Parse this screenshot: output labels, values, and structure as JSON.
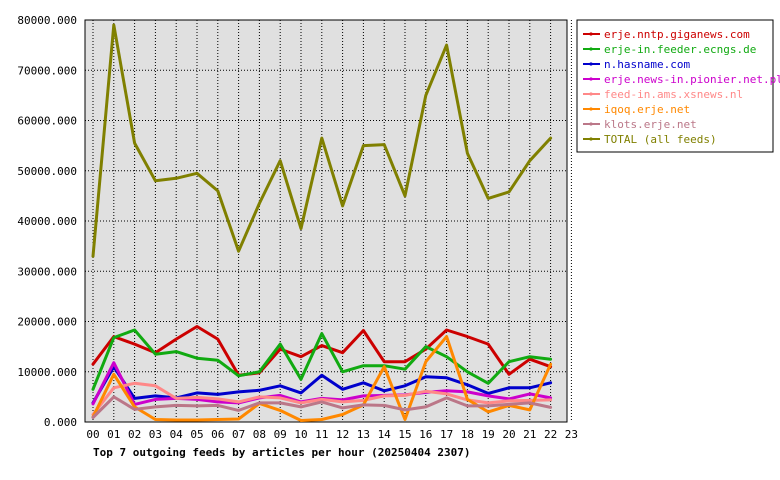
{
  "chart_data": {
    "type": "line",
    "title": "Top 7 outgoing feeds by articles per hour (20250404 2307)",
    "xlabel": "",
    "ylabel": "",
    "categories": [
      "00",
      "01",
      "02",
      "03",
      "04",
      "05",
      "06",
      "07",
      "08",
      "09",
      "10",
      "11",
      "12",
      "13",
      "14",
      "15",
      "16",
      "17",
      "18",
      "19",
      "20",
      "21",
      "22",
      "23"
    ],
    "y_ticks": [
      "0.000",
      "10000.000",
      "20000.000",
      "30000.000",
      "40000.000",
      "50000.000",
      "60000.000",
      "70000.000",
      "80000.000"
    ],
    "ylim": [
      0,
      80000
    ],
    "grid": true,
    "legend_position": "right",
    "series": [
      {
        "name": "erje.nntp.giganews.com",
        "color": "#cc0000",
        "values": [
          11500,
          17000,
          15500,
          13800,
          16500,
          19000,
          16500,
          9300,
          9800,
          14500,
          13000,
          15200,
          13800,
          18200,
          12000,
          12000,
          14500,
          18300,
          17000,
          15500,
          9500,
          12500,
          11000,
          null
        ]
      },
      {
        "name": "erje-in.feeder.ecngs.de",
        "color": "#11aa11",
        "values": [
          6500,
          16800,
          18300,
          13500,
          14000,
          12700,
          12300,
          9200,
          10000,
          15500,
          8500,
          17600,
          10000,
          11200,
          11200,
          10500,
          15000,
          13000,
          10000,
          7700,
          12000,
          13000,
          12500,
          null
        ]
      },
      {
        "name": "n.hasname.com",
        "color": "#0000cc",
        "values": [
          3800,
          11000,
          4700,
          5200,
          4800,
          5800,
          5500,
          6000,
          6300,
          7200,
          5800,
          9300,
          6500,
          7800,
          6200,
          7200,
          9000,
          8800,
          7400,
          5700,
          6800,
          6800,
          7800,
          null
        ]
      },
      {
        "name": "erje.news-in.pionier.net.pl",
        "color": "#cc00cc",
        "values": [
          3600,
          11800,
          3500,
          4500,
          4700,
          4500,
          4000,
          3800,
          4800,
          5300,
          4000,
          4700,
          4400,
          5200,
          5300,
          5400,
          5900,
          6200,
          6000,
          5200,
          4600,
          5600,
          4800,
          null
        ]
      },
      {
        "name": "feed-in.ams.xsnews.nl",
        "color": "#ff8888",
        "values": [
          1500,
          6800,
          7700,
          7200,
          4700,
          4900,
          4600,
          4000,
          5000,
          4800,
          3800,
          4500,
          4000,
          4300,
          5200,
          5300,
          6100,
          5600,
          4400,
          3800,
          4200,
          4300,
          4400,
          null
        ]
      },
      {
        "name": "iqoq.erje.net",
        "color": "#ff8800",
        "values": [
          1000,
          9500,
          3000,
          500,
          400,
          400,
          500,
          600,
          3700,
          2300,
          300,
          500,
          1500,
          3400,
          11000,
          500,
          12000,
          17000,
          4500,
          2000,
          3300,
          2400,
          11500,
          null
        ]
      },
      {
        "name": "klots.erje.net",
        "color": "#bb7788",
        "values": [
          900,
          5000,
          2500,
          3000,
          3300,
          3200,
          3300,
          2300,
          3800,
          3800,
          3000,
          4000,
          2800,
          3400,
          3300,
          2400,
          3000,
          4800,
          3200,
          3200,
          3500,
          3800,
          2900,
          null
        ]
      },
      {
        "name": "TOTAL (all feeds)",
        "color": "#808000",
        "values": [
          33000,
          79000,
          55500,
          48000,
          48500,
          49500,
          46000,
          34000,
          43500,
          52000,
          38500,
          56500,
          43000,
          55000,
          55200,
          45000,
          65000,
          75000,
          53500,
          44500,
          45800,
          52000,
          56500,
          null
        ]
      }
    ]
  }
}
